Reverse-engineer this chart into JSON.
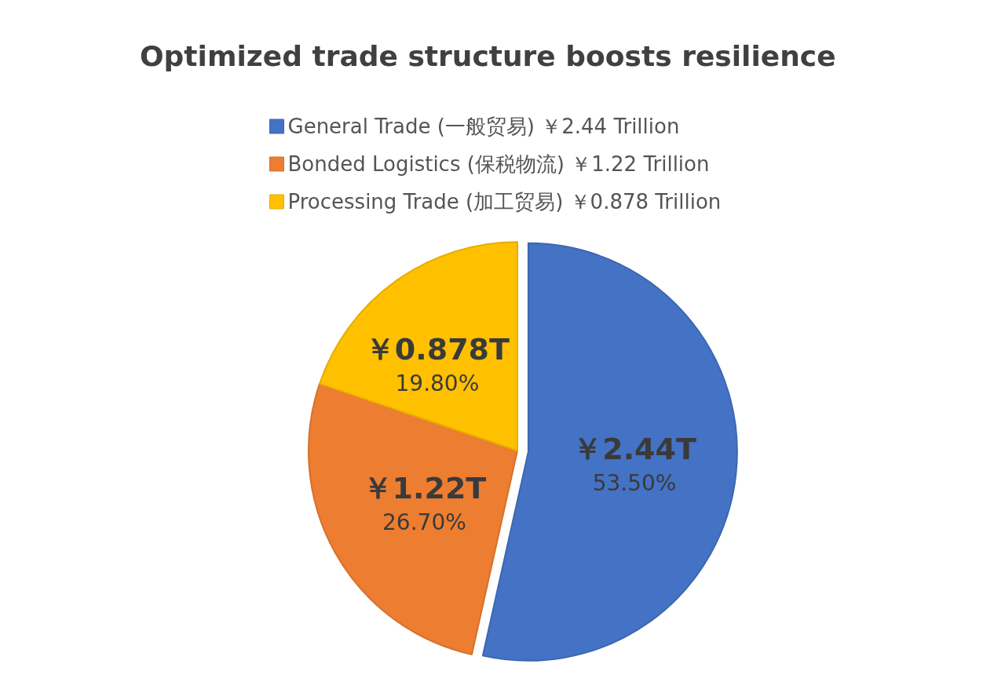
{
  "chart_data": {
    "type": "pie",
    "title": "Optimized trade structure boosts resilience",
    "categories": [
      "General Trade (一般贸易) ￥2.44 Trillion",
      "Bonded Logistics (保税物流) ￥1.22 Trillion",
      "Processing Trade (加工贸易) ￥0.878 Trillion"
    ],
    "values": [
      53.5,
      26.7,
      19.8
    ],
    "colors": [
      "#4472c4",
      "#ed7d31",
      "#ffc000"
    ],
    "value_labels": [
      "￥2.44T\n53.50%",
      "￥1.22T\n26.70%",
      "￥0.878T\n19.80%"
    ],
    "legend": "top"
  }
}
